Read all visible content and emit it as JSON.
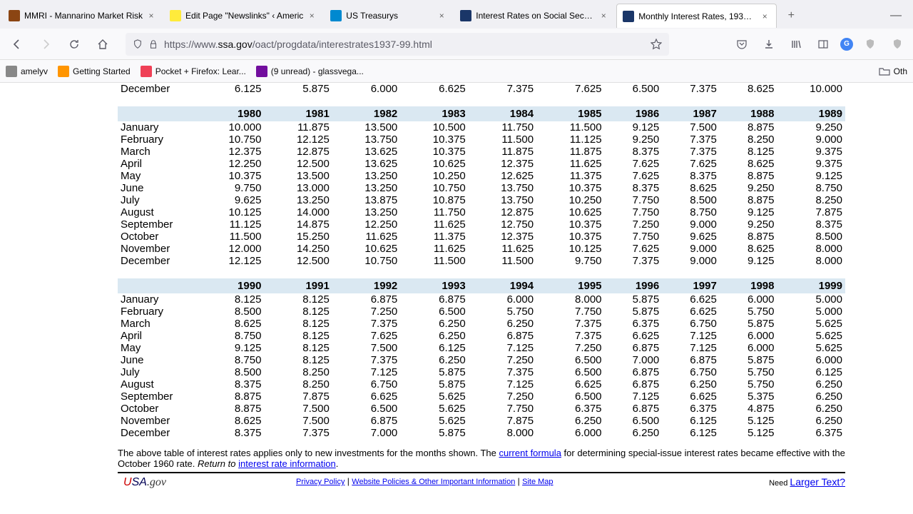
{
  "tabs": [
    {
      "title": "MMRI - Mannarino Market Risk",
      "favicon": "#8b4513"
    },
    {
      "title": "Edit Page \"Newslinks\" ‹ Americ",
      "favicon": "#ffeb3b"
    },
    {
      "title": "US Treasurys",
      "favicon": "#0089d0"
    },
    {
      "title": "Interest Rates on Social Security",
      "favicon": "#1a3668"
    },
    {
      "title": "Monthly Interest Rates, 1937-99",
      "favicon": "#1a3668",
      "active": true
    }
  ],
  "url": {
    "prefix": "https://www.",
    "domain": "ssa.gov",
    "path": "/oact/progdata/interestrates1937-99.html"
  },
  "bookmarks": [
    {
      "label": "amelyv",
      "color": "#888"
    },
    {
      "label": "Getting Started",
      "color": "#ff9500"
    },
    {
      "label": "Pocket + Firefox: Lear...",
      "color": "#ef4056"
    },
    {
      "label": "(9 unread) - glassvega...",
      "color": "#720e9e"
    }
  ],
  "otherBookmarks": "Oth",
  "months": [
    "January",
    "February",
    "March",
    "April",
    "May",
    "June",
    "July",
    "August",
    "September",
    "October",
    "November",
    "December"
  ],
  "decemberRow": {
    "month": "December",
    "values": [
      "6.125",
      "5.875",
      "6.000",
      "6.625",
      "7.375",
      "7.625",
      "6.500",
      "7.375",
      "8.625",
      "10.000"
    ]
  },
  "decades": [
    {
      "years": [
        "1980",
        "1981",
        "1982",
        "1983",
        "1984",
        "1985",
        "1986",
        "1987",
        "1988",
        "1989"
      ],
      "rows": [
        [
          "10.000",
          "11.875",
          "13.500",
          "10.500",
          "11.750",
          "11.500",
          "9.125",
          "7.500",
          "8.875",
          "9.250"
        ],
        [
          "10.750",
          "12.125",
          "13.750",
          "10.375",
          "11.500",
          "11.125",
          "9.250",
          "7.375",
          "8.250",
          "9.000"
        ],
        [
          "12.375",
          "12.875",
          "13.625",
          "10.375",
          "11.875",
          "11.875",
          "8.375",
          "7.375",
          "8.125",
          "9.375"
        ],
        [
          "12.250",
          "12.500",
          "13.625",
          "10.625",
          "12.375",
          "11.625",
          "7.625",
          "7.625",
          "8.625",
          "9.375"
        ],
        [
          "10.375",
          "13.500",
          "13.250",
          "10.250",
          "12.625",
          "11.375",
          "7.625",
          "8.375",
          "8.875",
          "9.125"
        ],
        [
          "9.750",
          "13.000",
          "13.250",
          "10.750",
          "13.750",
          "10.375",
          "8.375",
          "8.625",
          "9.250",
          "8.750"
        ],
        [
          "9.625",
          "13.250",
          "13.875",
          "10.875",
          "13.750",
          "10.250",
          "7.750",
          "8.500",
          "8.875",
          "8.250"
        ],
        [
          "10.125",
          "14.000",
          "13.250",
          "11.750",
          "12.875",
          "10.625",
          "7.750",
          "8.750",
          "9.125",
          "7.875"
        ],
        [
          "11.125",
          "14.875",
          "12.250",
          "11.625",
          "12.750",
          "10.375",
          "7.250",
          "9.000",
          "9.250",
          "8.375"
        ],
        [
          "11.500",
          "15.250",
          "11.625",
          "11.375",
          "12.375",
          "10.375",
          "7.750",
          "9.625",
          "8.875",
          "8.500"
        ],
        [
          "12.000",
          "14.250",
          "10.625",
          "11.625",
          "11.625",
          "10.125",
          "7.625",
          "9.000",
          "8.625",
          "8.000"
        ],
        [
          "12.125",
          "12.500",
          "10.750",
          "11.500",
          "11.500",
          "9.750",
          "7.375",
          "9.000",
          "9.125",
          "8.000"
        ]
      ]
    },
    {
      "years": [
        "1990",
        "1991",
        "1992",
        "1993",
        "1994",
        "1995",
        "1996",
        "1997",
        "1998",
        "1999"
      ],
      "rows": [
        [
          "8.125",
          "8.125",
          "6.875",
          "6.875",
          "6.000",
          "8.000",
          "5.875",
          "6.625",
          "6.000",
          "5.000"
        ],
        [
          "8.500",
          "8.125",
          "7.250",
          "6.500",
          "5.750",
          "7.750",
          "5.875",
          "6.625",
          "5.750",
          "5.000"
        ],
        [
          "8.625",
          "8.125",
          "7.375",
          "6.250",
          "6.250",
          "7.375",
          "6.375",
          "6.750",
          "5.875",
          "5.625"
        ],
        [
          "8.750",
          "8.125",
          "7.625",
          "6.250",
          "6.875",
          "7.375",
          "6.625",
          "7.125",
          "6.000",
          "5.625"
        ],
        [
          "9.125",
          "8.125",
          "7.500",
          "6.125",
          "7.125",
          "7.250",
          "6.875",
          "7.125",
          "6.000",
          "5.625"
        ],
        [
          "8.750",
          "8.125",
          "7.375",
          "6.250",
          "7.250",
          "6.500",
          "7.000",
          "6.875",
          "5.875",
          "6.000"
        ],
        [
          "8.500",
          "8.250",
          "7.125",
          "5.875",
          "7.375",
          "6.500",
          "6.875",
          "6.750",
          "5.750",
          "6.125"
        ],
        [
          "8.375",
          "8.250",
          "6.750",
          "5.875",
          "7.125",
          "6.625",
          "6.875",
          "6.250",
          "5.750",
          "6.250"
        ],
        [
          "8.875",
          "7.875",
          "6.625",
          "5.625",
          "7.250",
          "6.500",
          "7.125",
          "6.625",
          "5.375",
          "6.250"
        ],
        [
          "8.875",
          "7.500",
          "6.500",
          "5.625",
          "7.750",
          "6.375",
          "6.875",
          "6.375",
          "4.875",
          "6.250"
        ],
        [
          "8.625",
          "7.500",
          "6.875",
          "5.625",
          "7.875",
          "6.250",
          "6.500",
          "6.125",
          "5.125",
          "6.250"
        ],
        [
          "8.375",
          "7.375",
          "7.000",
          "5.875",
          "8.000",
          "6.000",
          "6.250",
          "6.125",
          "5.125",
          "6.375"
        ]
      ]
    }
  ],
  "footerNote": {
    "text1": "The above table of interest rates applies only to new investments for the months shown. The ",
    "link1": "current formula",
    "text2": " for determining special-issue interest rates became effective with the October 1960 rate.   ",
    "italic": "Return to ",
    "link2": "interest rate information",
    "text3": "."
  },
  "footerLinks": {
    "privacy": "Privacy Policy",
    "sep": "  |  ",
    "website": "Website Policies & Other Important Information",
    "sitemap": "Site Map"
  },
  "largerText": {
    "need": "Need ",
    "link": "Larger Text?"
  }
}
